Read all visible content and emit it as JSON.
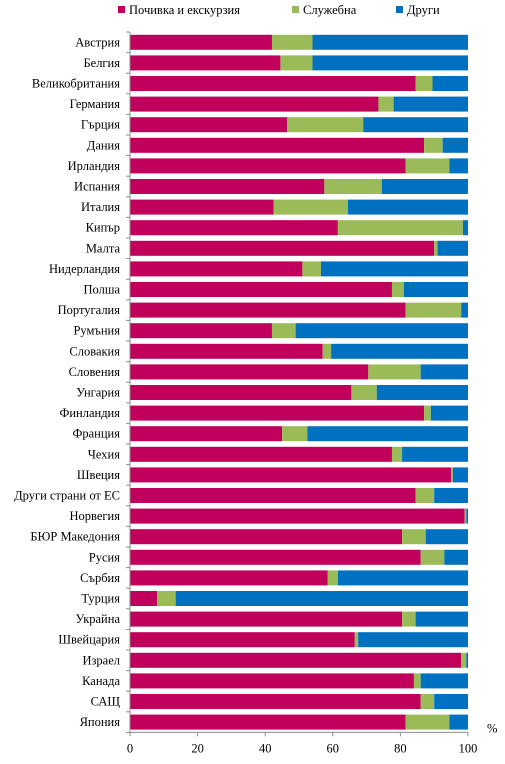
{
  "chart_data": {
    "type": "bar",
    "orientation": "horizontal",
    "stacked": true,
    "unit_label": "%",
    "xlim": [
      0,
      100
    ],
    "x_ticks": [
      0,
      20,
      40,
      60,
      80,
      100
    ],
    "grid": false,
    "legend_position": "top",
    "categories": [
      "Австрия",
      "Белгия",
      "Великобритания",
      "Германия",
      "Гърция",
      "Дания",
      "Ирландия",
      "Испания",
      "Италия",
      "Кипър",
      "Малта",
      "Нидерландия",
      "Полша",
      "Португалия",
      "Румъния",
      "Словакия",
      "Словения",
      "Унгария",
      "Финландия",
      "Франция",
      "Чехия",
      "Швеция",
      "Други страни от ЕС",
      "Норвегия",
      "БЮР Македония",
      "Русия",
      "Сърбия",
      "Турция",
      "Украйна",
      "Швейцария",
      "Израел",
      "Канада",
      "САЩ",
      "Япония"
    ],
    "series": [
      {
        "name": "Почивка и екскурзия",
        "color": "#C0005A",
        "values": [
          42,
          44.5,
          84.5,
          73.5,
          46.5,
          87,
          81.5,
          57.5,
          42.5,
          61.5,
          90,
          51,
          77.5,
          81.5,
          42,
          57,
          70.5,
          65.5,
          87,
          45,
          77.5,
          95,
          84.5,
          99,
          80.5,
          86,
          58.5,
          8,
          80.5,
          66.5,
          98,
          84,
          86,
          81.5
        ]
      },
      {
        "name": "Служебна",
        "color": "#9BBB59",
        "values": [
          12,
          9.5,
          5,
          4.5,
          22.5,
          5.5,
          13,
          17,
          22,
          37,
          1,
          5.5,
          3.5,
          16.5,
          7,
          2.5,
          15.5,
          7.5,
          2,
          7.5,
          3,
          0.5,
          5.5,
          0.5,
          7,
          7,
          3,
          5.5,
          4,
          1,
          1.5,
          2,
          4,
          13
        ]
      },
      {
        "name": "Други",
        "color": "#0070C0",
        "values": [
          46,
          46,
          10.5,
          22,
          31,
          7.5,
          5.5,
          25.5,
          35.5,
          1.5,
          9,
          43.5,
          19,
          2,
          51,
          40.5,
          14,
          27,
          11,
          47.5,
          19.5,
          4.5,
          10,
          0.5,
          12.5,
          7,
          38.5,
          86.5,
          15.5,
          32.5,
          0.5,
          14,
          10,
          5.5
        ]
      }
    ]
  }
}
